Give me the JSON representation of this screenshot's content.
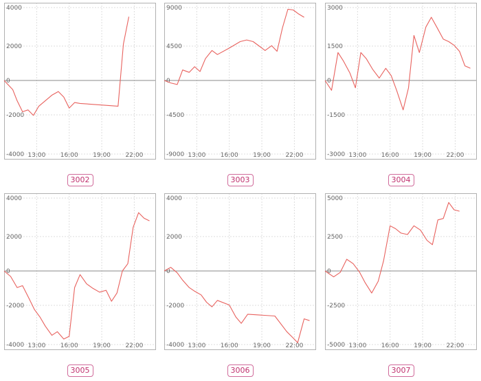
{
  "colors": {
    "line": "#e8615d",
    "zero_line": "#888888",
    "grid": "#dddddd",
    "frame": "#b0b0b0",
    "badge": "#c0306e"
  },
  "chart_data": [
    {
      "type": "line",
      "title": "3002",
      "grid": true,
      "x_ticks": [
        "13:00",
        "16:00",
        "19:00",
        "22:00"
      ],
      "y_ticks": [
        4000,
        2000,
        0,
        -2000,
        -4000
      ],
      "ylim": [
        -4000,
        4000
      ],
      "xlim": [
        10,
        24
      ],
      "series": [
        {
          "values": [
            [
              10,
              0
            ],
            [
              10.8,
              -500
            ],
            [
              11.2,
              -1100
            ],
            [
              11.7,
              -1700
            ],
            [
              12.2,
              -1600
            ],
            [
              12.7,
              -1900
            ],
            [
              13.2,
              -1400
            ],
            [
              13.8,
              -1100
            ],
            [
              14.4,
              -800
            ],
            [
              15,
              -600
            ],
            [
              15.5,
              -900
            ],
            [
              16,
              -1500
            ],
            [
              16.5,
              -1200
            ],
            [
              17,
              -1250
            ],
            [
              20.5,
              -1400
            ],
            [
              21,
              2000
            ],
            [
              21.5,
              3500
            ]
          ]
        }
      ]
    },
    {
      "type": "line",
      "title": "3003",
      "grid": true,
      "x_ticks": [
        "13:00",
        "16:00",
        "19:00",
        "22:00"
      ],
      "y_ticks": [
        9000,
        4500,
        0,
        -4500,
        -9000
      ],
      "ylim": [
        -9000,
        9000
      ],
      "xlim": [
        10,
        24
      ],
      "series": [
        {
          "values": [
            [
              10,
              0
            ],
            [
              10.6,
              -300
            ],
            [
              11.2,
              -500
            ],
            [
              11.7,
              1300
            ],
            [
              12.3,
              1000
            ],
            [
              12.8,
              1700
            ],
            [
              13.3,
              1100
            ],
            [
              13.8,
              2700
            ],
            [
              14.4,
              3700
            ],
            [
              14.9,
              3200
            ],
            [
              16,
              4000
            ],
            [
              17,
              4800
            ],
            [
              17.6,
              5000
            ],
            [
              18.2,
              4800
            ],
            [
              18.8,
              4200
            ],
            [
              19.3,
              3700
            ],
            [
              19.9,
              4300
            ],
            [
              20.4,
              3600
            ],
            [
              20.9,
              6500
            ],
            [
              21.4,
              8800
            ],
            [
              21.9,
              8700
            ],
            [
              22.4,
              8200
            ],
            [
              22.9,
              7800
            ]
          ]
        }
      ]
    },
    {
      "type": "line",
      "title": "3004",
      "grid": true,
      "x_ticks": [
        "13:00",
        "16:00",
        "19:00",
        "22:00"
      ],
      "y_ticks": [
        3000,
        1500,
        0,
        -1500,
        -3000
      ],
      "ylim": [
        -3000,
        3000
      ],
      "xlim": [
        10,
        24
      ],
      "series": [
        {
          "values": [
            [
              10,
              0
            ],
            [
              10.6,
              -400
            ],
            [
              11.2,
              1150
            ],
            [
              11.7,
              800
            ],
            [
              12.3,
              300
            ],
            [
              12.8,
              -300
            ],
            [
              13.3,
              1150
            ],
            [
              13.8,
              900
            ],
            [
              14.4,
              450
            ],
            [
              15,
              100
            ],
            [
              15.6,
              500
            ],
            [
              16.1,
              200
            ],
            [
              16.6,
              -400
            ],
            [
              17.2,
              -1200
            ],
            [
              17.7,
              -300
            ],
            [
              18.2,
              1850
            ],
            [
              18.7,
              1150
            ],
            [
              19.3,
              2200
            ],
            [
              19.8,
              2600
            ],
            [
              20.3,
              2200
            ],
            [
              20.9,
              1700
            ],
            [
              21.4,
              1600
            ],
            [
              21.9,
              1450
            ],
            [
              22.4,
              1200
            ],
            [
              22.9,
              600
            ],
            [
              23.4,
              500
            ]
          ]
        }
      ]
    },
    {
      "type": "line",
      "title": "3005",
      "grid": true,
      "x_ticks": [
        "13:00",
        "16:00",
        "19:00",
        "22:00"
      ],
      "y_ticks": [
        4000,
        2000,
        0,
        -2000,
        -4000
      ],
      "ylim": [
        -4000,
        4000
      ],
      "xlim": [
        10,
        24
      ],
      "series": [
        {
          "values": [
            [
              10,
              0
            ],
            [
              10.6,
              -300
            ],
            [
              11.2,
              -900
            ],
            [
              11.7,
              -800
            ],
            [
              12.3,
              -1500
            ],
            [
              12.8,
              -2100
            ],
            [
              13.3,
              -2500
            ],
            [
              13.8,
              -3000
            ],
            [
              14.4,
              -3500
            ],
            [
              14.9,
              -3300
            ],
            [
              15.5,
              -3700
            ],
            [
              16,
              -3550
            ],
            [
              16.5,
              -900
            ],
            [
              17,
              -200
            ],
            [
              17.6,
              -700
            ],
            [
              18.2,
              -950
            ],
            [
              18.8,
              -1150
            ],
            [
              19.4,
              -1050
            ],
            [
              19.9,
              -1650
            ],
            [
              20.4,
              -1200
            ],
            [
              20.9,
              0
            ],
            [
              21.4,
              400
            ],
            [
              21.9,
              2400
            ],
            [
              22.4,
              3200
            ],
            [
              22.9,
              2900
            ],
            [
              23.4,
              2750
            ]
          ]
        }
      ]
    },
    {
      "type": "line",
      "title": "3006",
      "grid": true,
      "x_ticks": [
        "13:00",
        "16:00",
        "19:00",
        "22:00"
      ],
      "y_ticks": [
        4000,
        2000,
        0,
        -2000,
        -4000
      ],
      "ylim": [
        -4000,
        4000
      ],
      "xlim": [
        10,
        24
      ],
      "series": [
        {
          "values": [
            [
              10,
              0
            ],
            [
              10.6,
              200
            ],
            [
              11.2,
              -100
            ],
            [
              11.7,
              -500
            ],
            [
              12.3,
              -900
            ],
            [
              12.8,
              -1100
            ],
            [
              13.4,
              -1300
            ],
            [
              13.9,
              -1700
            ],
            [
              14.4,
              -1950
            ],
            [
              14.9,
              -1600
            ],
            [
              16,
              -1850
            ],
            [
              16.6,
              -2500
            ],
            [
              17.1,
              -2850
            ],
            [
              17.7,
              -2350
            ],
            [
              20.2,
              -2450
            ],
            [
              21.3,
              -3300
            ],
            [
              21.9,
              -3650
            ],
            [
              22.3,
              -3900
            ],
            [
              22.9,
              -2600
            ],
            [
              23.4,
              -2700
            ]
          ]
        }
      ]
    },
    {
      "type": "line",
      "title": "3007",
      "grid": true,
      "x_ticks": [
        "13:00",
        "16:00",
        "19:00",
        "22:00"
      ],
      "y_ticks": [
        5000,
        2500,
        0,
        -2500,
        -5000
      ],
      "ylim": [
        -5000,
        5000
      ],
      "xlim": [
        10,
        24
      ],
      "series": [
        {
          "values": [
            [
              10,
              0
            ],
            [
              10.8,
              -400
            ],
            [
              11.4,
              -100
            ],
            [
              12,
              800
            ],
            [
              12.6,
              500
            ],
            [
              13.2,
              -100
            ],
            [
              13.7,
              -800
            ],
            [
              14.3,
              -1500
            ],
            [
              14.9,
              -700
            ],
            [
              15.4,
              700
            ],
            [
              16,
              3100
            ],
            [
              16.5,
              2900
            ],
            [
              17,
              2600
            ],
            [
              17.6,
              2500
            ],
            [
              18.2,
              3100
            ],
            [
              18.8,
              2800
            ],
            [
              19.4,
              2100
            ],
            [
              19.9,
              1800
            ],
            [
              20.4,
              3500
            ],
            [
              20.9,
              3600
            ],
            [
              21.4,
              4700
            ],
            [
              21.9,
              4200
            ],
            [
              22.4,
              4100
            ]
          ]
        }
      ]
    }
  ]
}
